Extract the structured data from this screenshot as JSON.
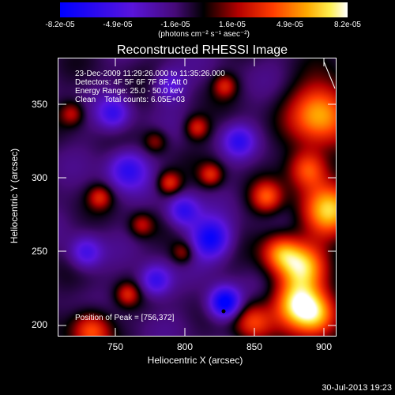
{
  "chart_data": {
    "type": "heatmap",
    "title": "Reconstructed RHESSI Image",
    "xlabel": "Heliocentric X (arcsec)",
    "ylabel": "Heliocentric Y (arcsec)",
    "xlim": [
      715,
      905
    ],
    "ylim": [
      195,
      375
    ],
    "xticks": [
      "750",
      "800",
      "850",
      "900"
    ],
    "yticks": [
      "200",
      "250",
      "300",
      "350"
    ],
    "colorbar": {
      "ticks": [
        "-8.2e-05",
        "-4.9e-05",
        "-1.6e-05",
        "1.6e-05",
        "4.9e-05",
        "8.2e-05"
      ],
      "unit": "(photons cm⁻² s⁻¹ asec⁻²)",
      "range": [
        -8.2e-05,
        8.2e-05
      ]
    },
    "annotations": {
      "time": "23-Dec-2009 11:29:26.000 to 11:35:26.000",
      "detectors": "Detectors: 4F 5F 6F 7F 8F, Att 0",
      "energy": "Energy Range: 25.0 - 50.0 keV",
      "clean": "Clean    Total counts: 6.05E+03",
      "peak": "Position of Peak = [756,372]"
    }
  },
  "footer": {
    "timestamp": "30-Jul-2013 19:23"
  }
}
